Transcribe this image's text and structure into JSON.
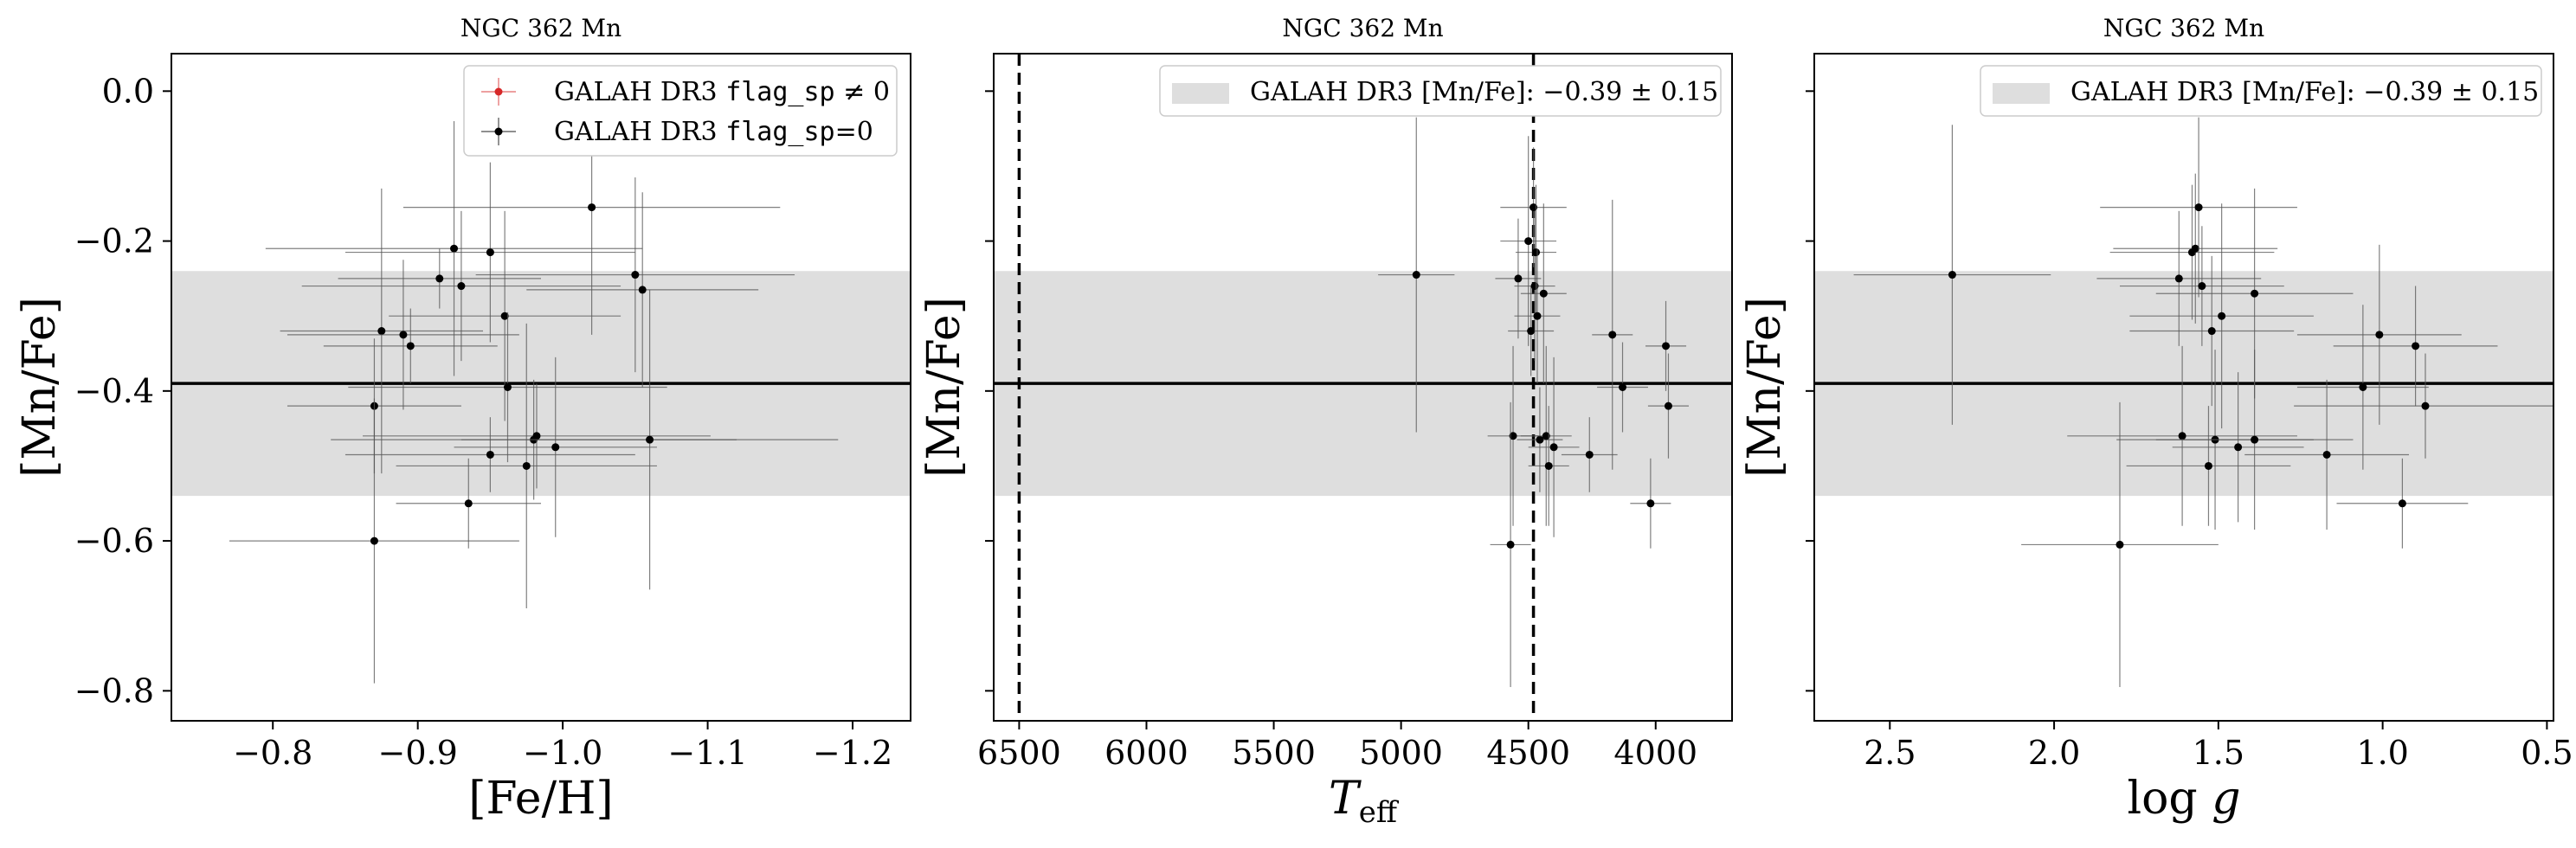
{
  "chart_data": [
    {
      "type": "scatter",
      "title": "NGC 362 Mn",
      "xlabel": "[Fe/H]",
      "ylabel": "[Mn/Fe]",
      "xlim": [
        -0.73,
        -1.24
      ],
      "ylim": [
        -0.84,
        0.05
      ],
      "xticks": [
        -0.8,
        -0.9,
        -1.0,
        -1.1,
        -1.2
      ],
      "xtick_labels": [
        "−0.8",
        "−0.9",
        "−1.0",
        "−1.1",
        "−1.2"
      ],
      "yticks": [
        0.0,
        -0.2,
        -0.4,
        -0.6,
        -0.8
      ],
      "ytick_labels": [
        "0.0",
        "−0.2",
        "−0.4",
        "−0.6",
        "−0.8"
      ],
      "band": {
        "center": -0.39,
        "err": 0.15,
        "color": "#dedede"
      },
      "legend": {
        "position": "top-right",
        "entries": [
          {
            "prefix": "GALAH DR3 ",
            "code": "flag_sp",
            "suffix": " ≠ 0",
            "color": "#d62728",
            "marker": "errorbar-point"
          },
          {
            "prefix": "GALAH DR3 ",
            "code": "flag_sp",
            "suffix": "=0",
            "color": "#000000",
            "marker": "errorbar-point"
          }
        ]
      },
      "vlines": [],
      "series": [
        {
          "name": "GALAH DR3 flag_sp=0",
          "color": "#000000",
          "points": [
            {
              "x": -0.87,
              "y": -0.42,
              "xerr": 0.06,
              "yerr": 0.09
            },
            {
              "x": -0.87,
              "y": -0.6,
              "xerr": 0.1,
              "yerr": 0.19
            },
            {
              "x": -0.875,
              "y": -0.32,
              "xerr": 0.07,
              "yerr": 0.19
            },
            {
              "x": -0.89,
              "y": -0.325,
              "xerr": 0.08,
              "yerr": 0.1
            },
            {
              "x": -0.895,
              "y": -0.34,
              "xerr": 0.06,
              "yerr": 0.05
            },
            {
              "x": -0.915,
              "y": -0.25,
              "xerr": 0.07,
              "yerr": 0.04
            },
            {
              "x": -0.925,
              "y": -0.21,
              "xerr": 0.13,
              "yerr": 0.17
            },
            {
              "x": -0.93,
              "y": -0.26,
              "xerr": 0.11,
              "yerr": 0.1
            },
            {
              "x": -0.935,
              "y": -0.55,
              "xerr": 0.05,
              "yerr": 0.06
            },
            {
              "x": -0.95,
              "y": -0.215,
              "xerr": 0.1,
              "yerr": 0.12
            },
            {
              "x": -0.95,
              "y": -0.485,
              "xerr": 0.1,
              "yerr": 0.05
            },
            {
              "x": -0.96,
              "y": -0.3,
              "xerr": 0.08,
              "yerr": 0.14
            },
            {
              "x": -0.962,
              "y": -0.395,
              "xerr": 0.11,
              "yerr": 0.1
            },
            {
              "x": -0.975,
              "y": -0.5,
              "xerr": 0.09,
              "yerr": 0.19
            },
            {
              "x": -0.98,
              "y": -0.465,
              "xerr": 0.14,
              "yerr": 0.08
            },
            {
              "x": -0.982,
              "y": -0.46,
              "xerr": 0.12,
              "yerr": 0.07
            },
            {
              "x": -0.995,
              "y": -0.475,
              "xerr": 0.07,
              "yerr": 0.12
            },
            {
              "x": -1.02,
              "y": -0.155,
              "xerr": 0.13,
              "yerr": 0.17
            },
            {
              "x": -1.05,
              "y": -0.245,
              "xerr": 0.11,
              "yerr": 0.13
            },
            {
              "x": -1.055,
              "y": -0.265,
              "xerr": 0.08,
              "yerr": 0.13
            },
            {
              "x": -1.06,
              "y": -0.465,
              "xerr": 0.13,
              "yerr": 0.2
            }
          ]
        }
      ]
    },
    {
      "type": "scatter",
      "title": "NGC 362 Mn",
      "xlabel": "T_eff",
      "ylabel": "[Mn/Fe]",
      "xlim": [
        6600,
        3700
      ],
      "ylim": [
        -0.84,
        0.05
      ],
      "xticks": [
        6500,
        6000,
        5500,
        5000,
        4500,
        4000
      ],
      "xtick_labels": [
        "6500",
        "6000",
        "5500",
        "5000",
        "4500",
        "4000"
      ],
      "yticks": [
        0.0,
        -0.2,
        -0.4,
        -0.6,
        -0.8
      ],
      "ytick_labels": [],
      "band": {
        "center": -0.39,
        "err": 0.15,
        "color": "#dedede"
      },
      "legend": {
        "position": "top-right",
        "entries": [
          {
            "prefix": "GALAH DR3 [Mn/Fe]: ",
            "value": "−0.39 ± 0.15",
            "color": "#dedede",
            "marker": "patch"
          }
        ]
      },
      "vlines": [
        6500,
        4480
      ],
      "series": [
        {
          "name": "GALAH DR3 flag_sp=0",
          "color": "#000000",
          "points": [
            {
              "x": 4940,
              "y": -0.245,
              "xerr": 150,
              "yerr": 0.21
            },
            {
              "x": 4560,
              "y": -0.46,
              "xerr": 100,
              "yerr": 0.12
            },
            {
              "x": 4570,
              "y": -0.605,
              "xerr": 80,
              "yerr": 0.19
            },
            {
              "x": 4540,
              "y": -0.25,
              "xerr": 90,
              "yerr": 0.08
            },
            {
              "x": 4500,
              "y": -0.2,
              "xerr": 110,
              "yerr": 0.14
            },
            {
              "x": 4490,
              "y": -0.32,
              "xerr": 90,
              "yerr": 0.06
            },
            {
              "x": 4480,
              "y": -0.155,
              "xerr": 130,
              "yerr": 0.08
            },
            {
              "x": 4475,
              "y": -0.26,
              "xerr": 80,
              "yerr": 0.1
            },
            {
              "x": 4470,
              "y": -0.215,
              "xerr": 80,
              "yerr": 0.09
            },
            {
              "x": 4465,
              "y": -0.3,
              "xerr": 90,
              "yerr": 0.09
            },
            {
              "x": 4455,
              "y": -0.465,
              "xerr": 90,
              "yerr": 0.07
            },
            {
              "x": 4440,
              "y": -0.27,
              "xerr": 90,
              "yerr": 0.12
            },
            {
              "x": 4430,
              "y": -0.46,
              "xerr": 100,
              "yerr": 0.12
            },
            {
              "x": 4420,
              "y": -0.5,
              "xerr": 80,
              "yerr": 0.08
            },
            {
              "x": 4400,
              "y": -0.475,
              "xerr": 100,
              "yerr": 0.12
            },
            {
              "x": 4260,
              "y": -0.485,
              "xerr": 110,
              "yerr": 0.05
            },
            {
              "x": 4170,
              "y": -0.325,
              "xerr": 80,
              "yerr": 0.18
            },
            {
              "x": 4130,
              "y": -0.395,
              "xerr": 100,
              "yerr": 0.06
            },
            {
              "x": 4020,
              "y": -0.55,
              "xerr": 80,
              "yerr": 0.06
            },
            {
              "x": 3960,
              "y": -0.34,
              "xerr": 80,
              "yerr": 0.06
            },
            {
              "x": 3950,
              "y": -0.42,
              "xerr": 80,
              "yerr": 0.07
            }
          ]
        }
      ]
    },
    {
      "type": "scatter",
      "title": "NGC 362 Mn",
      "xlabel": "log g",
      "ylabel": "[Mn/Fe]",
      "xlim": [
        2.73,
        0.48
      ],
      "ylim": [
        -0.84,
        0.05
      ],
      "xticks": [
        2.5,
        2.0,
        1.5,
        1.0,
        0.5
      ],
      "xtick_labels": [
        "2.5",
        "2.0",
        "1.5",
        "1.0",
        "0.5"
      ],
      "yticks": [
        0.0,
        -0.2,
        -0.4,
        -0.6,
        -0.8
      ],
      "ytick_labels": [],
      "band": {
        "center": -0.39,
        "err": 0.15,
        "color": "#dedede"
      },
      "legend": {
        "position": "top-right",
        "entries": [
          {
            "prefix": "GALAH DR3 [Mn/Fe]: ",
            "value": "−0.39 ± 0.15",
            "color": "#dedede",
            "marker": "patch"
          }
        ]
      },
      "vlines": [],
      "series": [
        {
          "name": "GALAH DR3 flag_sp=0",
          "color": "#000000",
          "points": [
            {
              "x": 2.31,
              "y": -0.245,
              "xerr": 0.3,
              "yerr": 0.2
            },
            {
              "x": 1.8,
              "y": -0.605,
              "xerr": 0.3,
              "yerr": 0.19
            },
            {
              "x": 1.62,
              "y": -0.25,
              "xerr": 0.25,
              "yerr": 0.09
            },
            {
              "x": 1.61,
              "y": -0.46,
              "xerr": 0.35,
              "yerr": 0.12
            },
            {
              "x": 1.58,
              "y": -0.215,
              "xerr": 0.25,
              "yerr": 0.09
            },
            {
              "x": 1.57,
              "y": -0.21,
              "xerr": 0.25,
              "yerr": 0.1
            },
            {
              "x": 1.56,
              "y": -0.155,
              "xerr": 0.3,
              "yerr": 0.12
            },
            {
              "x": 1.55,
              "y": -0.26,
              "xerr": 0.25,
              "yerr": 0.08
            },
            {
              "x": 1.53,
              "y": -0.5,
              "xerr": 0.25,
              "yerr": 0.08
            },
            {
              "x": 1.52,
              "y": -0.32,
              "xerr": 0.25,
              "yerr": 0.1
            },
            {
              "x": 1.51,
              "y": -0.465,
              "xerr": 0.3,
              "yerr": 0.12
            },
            {
              "x": 1.49,
              "y": -0.3,
              "xerr": 0.28,
              "yerr": 0.15
            },
            {
              "x": 1.44,
              "y": -0.475,
              "xerr": 0.2,
              "yerr": 0.1
            },
            {
              "x": 1.39,
              "y": -0.465,
              "xerr": 0.3,
              "yerr": 0.12
            },
            {
              "x": 1.39,
              "y": -0.27,
              "xerr": 0.3,
              "yerr": 0.14
            },
            {
              "x": 1.17,
              "y": -0.485,
              "xerr": 0.25,
              "yerr": 0.1
            },
            {
              "x": 1.06,
              "y": -0.395,
              "xerr": 0.2,
              "yerr": 0.11
            },
            {
              "x": 1.01,
              "y": -0.325,
              "xerr": 0.25,
              "yerr": 0.12
            },
            {
              "x": 0.94,
              "y": -0.55,
              "xerr": 0.2,
              "yerr": 0.06
            },
            {
              "x": 0.9,
              "y": -0.34,
              "xerr": 0.25,
              "yerr": 0.08
            },
            {
              "x": 0.87,
              "y": -0.42,
              "xerr": 0.4,
              "yerr": 0.07
            }
          ]
        }
      ]
    }
  ]
}
